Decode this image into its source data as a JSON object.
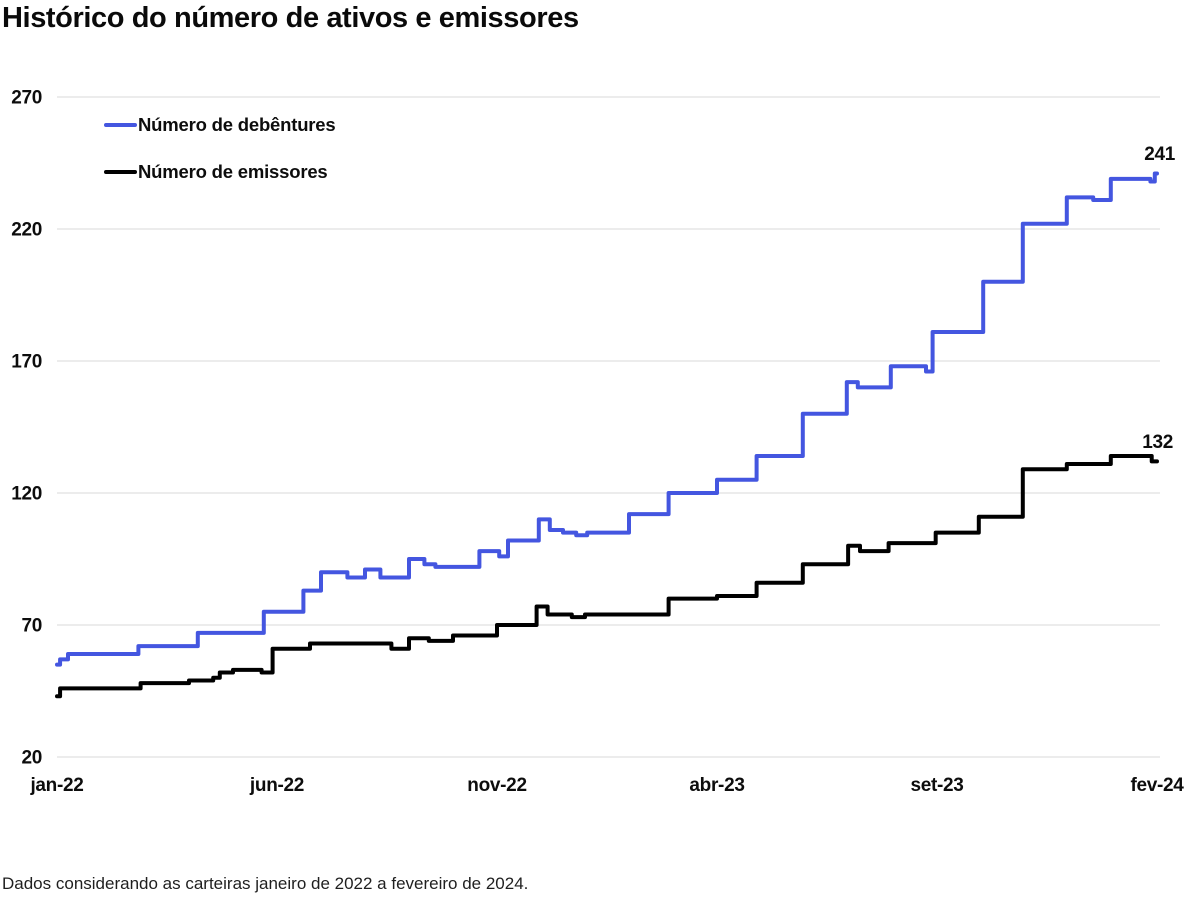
{
  "title": "Histórico do número de ativos e emissores",
  "footnote": "Dados considerando as carteiras janeiro de 2022 a fevereiro de 2024.",
  "chart_data": {
    "type": "line",
    "line_style": "step",
    "title": "Histórico do número de ativos e emissores",
    "grid": "horizontal",
    "grid_color": "#e6e6e6",
    "legend_position": "top-left",
    "ylim": [
      20,
      270
    ],
    "y_ticks": [
      270,
      220,
      170,
      120,
      70,
      20
    ],
    "x_ticks": [
      {
        "label": "jan-22",
        "month": 0
      },
      {
        "label": "jun-22",
        "month": 5
      },
      {
        "label": "nov-22",
        "month": 10
      },
      {
        "label": "abr-23",
        "month": 15
      },
      {
        "label": "set-23",
        "month": 20
      },
      {
        "label": "fev-24",
        "month": 25
      }
    ],
    "x_range_months": [
      0,
      25
    ],
    "series": [
      {
        "name": "Número de debêntures",
        "color": "#4456e0",
        "end_label": "241",
        "final_value": 241,
        "points": [
          [
            0,
            55
          ],
          [
            0.07,
            57
          ],
          [
            0.25,
            59
          ],
          [
            1.85,
            62
          ],
          [
            3.2,
            67
          ],
          [
            4.7,
            75
          ],
          [
            5.6,
            83
          ],
          [
            6.0,
            90
          ],
          [
            6.6,
            88
          ],
          [
            7.0,
            91
          ],
          [
            7.35,
            88
          ],
          [
            8.0,
            95
          ],
          [
            8.35,
            93
          ],
          [
            8.6,
            92
          ],
          [
            9.6,
            98
          ],
          [
            10.05,
            96
          ],
          [
            10.25,
            102
          ],
          [
            10.95,
            110
          ],
          [
            11.2,
            106
          ],
          [
            11.5,
            105
          ],
          [
            11.8,
            104
          ],
          [
            12.05,
            105
          ],
          [
            13.0,
            112
          ],
          [
            13.9,
            120
          ],
          [
            15.0,
            125
          ],
          [
            15.9,
            134
          ],
          [
            16.95,
            150
          ],
          [
            17.95,
            162
          ],
          [
            18.2,
            160
          ],
          [
            18.95,
            168
          ],
          [
            19.75,
            166
          ],
          [
            19.9,
            181
          ],
          [
            21.05,
            200
          ],
          [
            21.95,
            222
          ],
          [
            22.95,
            232
          ],
          [
            23.55,
            231
          ],
          [
            23.95,
            239
          ],
          [
            24.85,
            238
          ],
          [
            24.95,
            241
          ],
          [
            25,
            241
          ]
        ]
      },
      {
        "name": "Número de emissores",
        "color": "#000000",
        "end_label": "132",
        "final_value": 132,
        "points": [
          [
            0,
            43
          ],
          [
            0.07,
            46
          ],
          [
            1.9,
            48
          ],
          [
            3.0,
            49
          ],
          [
            3.55,
            50
          ],
          [
            3.7,
            52
          ],
          [
            4.0,
            53
          ],
          [
            4.65,
            52
          ],
          [
            4.9,
            61
          ],
          [
            5.75,
            63
          ],
          [
            7.6,
            61
          ],
          [
            8.0,
            65
          ],
          [
            8.45,
            64
          ],
          [
            9.0,
            66
          ],
          [
            10.0,
            70
          ],
          [
            10.9,
            77
          ],
          [
            11.15,
            74
          ],
          [
            11.7,
            73
          ],
          [
            12.0,
            74
          ],
          [
            13.9,
            80
          ],
          [
            15.0,
            81
          ],
          [
            15.9,
            86
          ],
          [
            16.95,
            93
          ],
          [
            17.98,
            100
          ],
          [
            18.25,
            98
          ],
          [
            18.9,
            101
          ],
          [
            19.97,
            105
          ],
          [
            20.95,
            111
          ],
          [
            21.95,
            129
          ],
          [
            22.95,
            131
          ],
          [
            23.95,
            134
          ],
          [
            24.88,
            132
          ],
          [
            25,
            132
          ]
        ]
      }
    ]
  }
}
